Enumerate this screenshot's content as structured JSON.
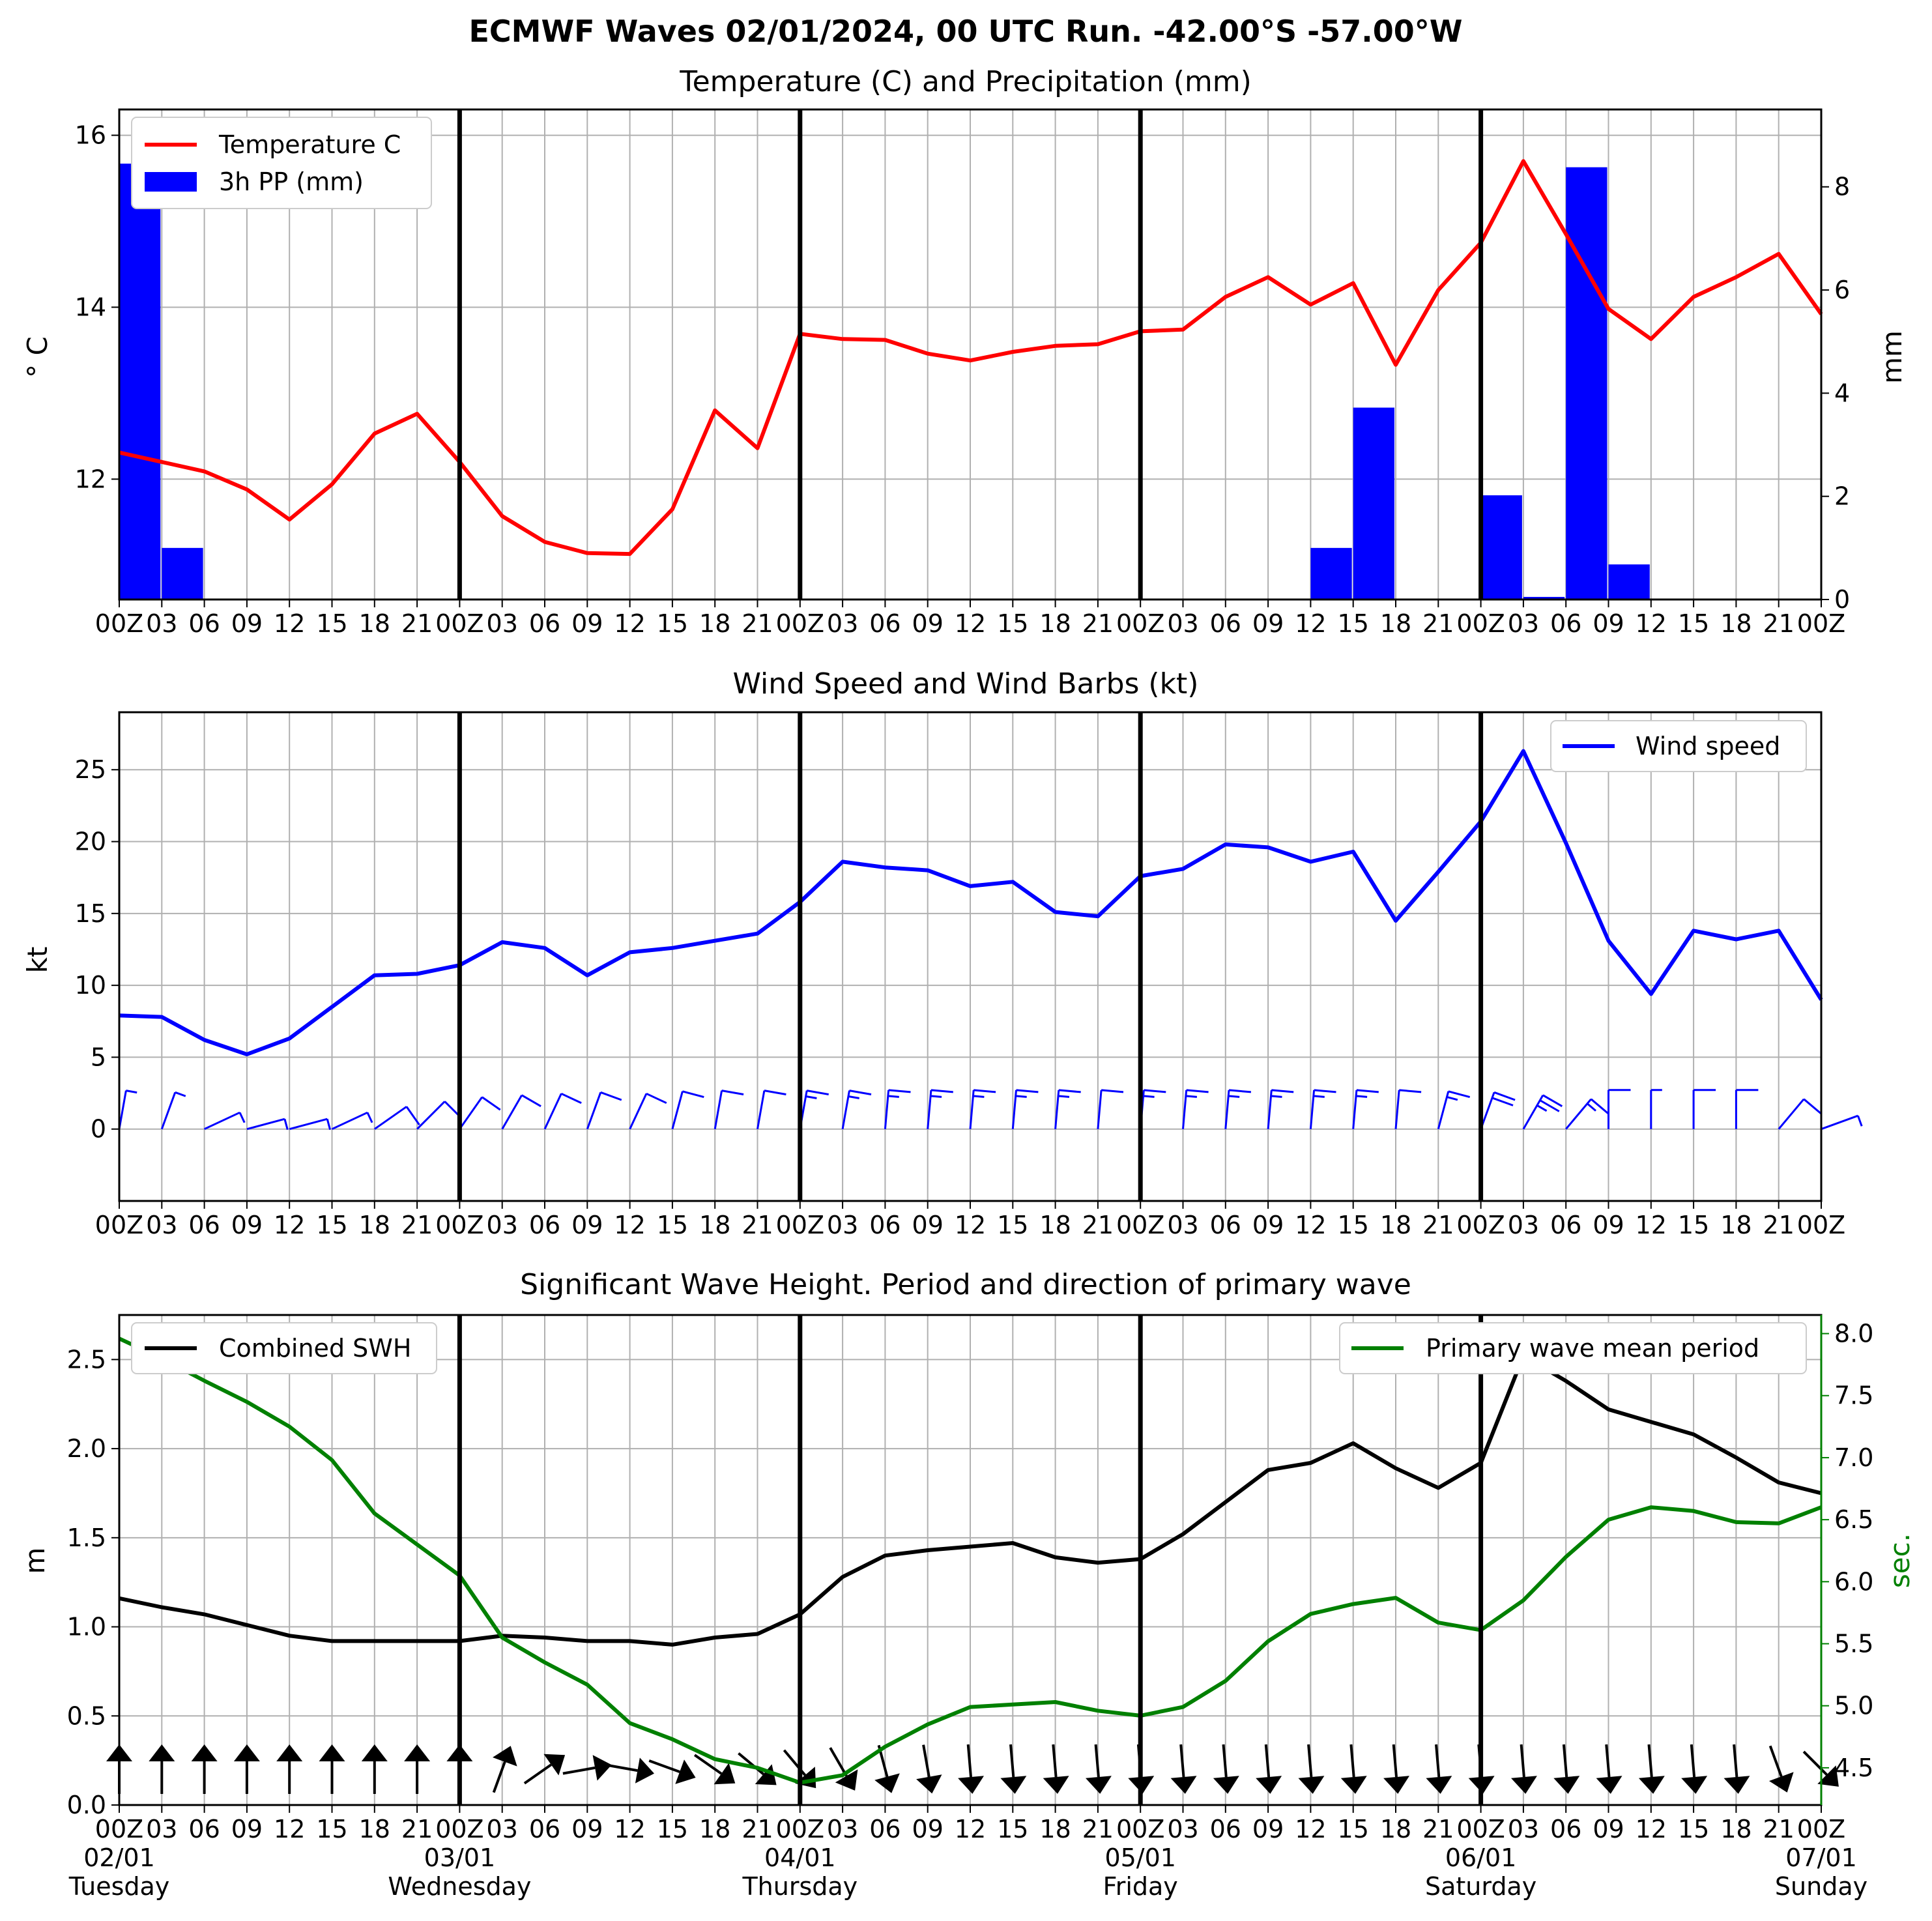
{
  "figure": {
    "suptitle": "ECMWF Waves 02/01/2024, 00 UTC Run. -42.00°S -57.00°W"
  },
  "chart_data": [
    {
      "type": "line",
      "title": "Temperature (C) and Precipitation (mm)",
      "ylabel": "° C",
      "y2label": "mm",
      "ylim": [
        10.6,
        16.3
      ],
      "yticks": [
        12,
        14,
        16
      ],
      "y2lim": [
        0,
        9.5
      ],
      "y2ticks": [
        0,
        2,
        4,
        6,
        8
      ],
      "xtick_labels": [
        "00Z",
        "03",
        "06",
        "09",
        "12",
        "15",
        "18",
        "21",
        "00Z",
        "03",
        "06",
        "09",
        "12",
        "15",
        "18",
        "21",
        "00Z",
        "03",
        "06",
        "09",
        "12",
        "15",
        "18",
        "21",
        "00Z",
        "03",
        "06",
        "09",
        "12",
        "15",
        "18",
        "21",
        "00Z",
        "03",
        "06",
        "09",
        "12",
        "15",
        "18",
        "21",
        "00Z"
      ],
      "grid": true,
      "legend": "upper left",
      "series": [
        {
          "name": "Temperature C",
          "color": "#ff0000",
          "values": [
            12.31,
            12.2,
            12.09,
            11.88,
            11.53,
            11.94,
            12.53,
            12.76,
            12.2,
            11.57,
            11.27,
            11.14,
            11.13,
            11.65,
            12.8,
            12.36,
            13.69,
            13.63,
            13.62,
            13.46,
            13.38,
            13.48,
            13.55,
            13.57,
            13.72,
            13.74,
            14.12,
            14.35,
            14.03,
            14.28,
            13.33,
            14.2,
            14.75,
            15.7,
            14.85,
            13.98,
            13.63,
            14.12,
            14.35,
            14.62,
            13.92
          ]
        },
        {
          "name": "3h PP (mm)",
          "type": "bar",
          "axis": "right",
          "color": "#0000ff",
          "values": [
            8.45,
            1.0,
            0,
            0,
            0,
            0,
            0,
            0,
            0,
            0,
            0,
            0,
            0,
            0,
            0,
            0,
            0,
            0,
            0,
            0,
            0,
            0,
            0,
            0,
            0,
            0,
            0,
            0,
            1.0,
            3.72,
            0,
            0,
            2.02,
            0.05,
            8.38,
            0.68,
            0,
            0,
            0,
            0
          ]
        }
      ]
    },
    {
      "type": "line",
      "title": "Wind Speed and Wind Barbs (kt)",
      "ylabel": "kt",
      "ylim": [
        -5,
        29
      ],
      "yticks": [
        0,
        5,
        10,
        15,
        20,
        25
      ],
      "xtick_labels": [
        "00Z",
        "03",
        "06",
        "09",
        "12",
        "15",
        "18",
        "21",
        "00Z",
        "03",
        "06",
        "09",
        "12",
        "15",
        "18",
        "21",
        "00Z",
        "03",
        "06",
        "09",
        "12",
        "15",
        "18",
        "21",
        "00Z",
        "03",
        "06",
        "09",
        "12",
        "15",
        "18",
        "21",
        "00Z",
        "03",
        "06",
        "09",
        "12",
        "15",
        "18",
        "21",
        "00Z"
      ],
      "grid": true,
      "legend": "upper right",
      "series": [
        {
          "name": "Wind speed",
          "color": "#0000ff",
          "values": [
            7.9,
            7.8,
            6.2,
            5.2,
            6.3,
            8.5,
            10.7,
            10.8,
            11.4,
            13.0,
            12.6,
            10.7,
            12.3,
            12.6,
            13.1,
            13.6,
            15.8,
            18.6,
            18.2,
            18.0,
            16.9,
            17.2,
            15.1,
            14.8,
            17.6,
            18.1,
            19.8,
            19.6,
            18.6,
            19.3,
            14.5,
            17.9,
            21.4,
            26.3,
            19.9,
            13.1,
            9.4,
            13.8,
            13.2,
            13.8,
            9.0
          ]
        }
      ],
      "barbs": {
        "color": "#0000ff",
        "directions_deg": [
          10,
          20,
          65,
          75,
          75,
          65,
          55,
          45,
          35,
          30,
          25,
          20,
          25,
          15,
          10,
          10,
          10,
          10,
          5,
          5,
          5,
          5,
          5,
          5,
          5,
          5,
          5,
          5,
          5,
          5,
          5,
          15,
          20,
          30,
          40,
          0,
          0,
          0,
          0,
          40,
          70
        ]
      }
    },
    {
      "type": "line",
      "title": "Significant Wave Height. Period and direction of primary wave",
      "ylabel": "m",
      "y2label": "sec.",
      "ylim": [
        0,
        2.75
      ],
      "yticks": [
        0.0,
        0.5,
        1.0,
        1.5,
        2.0,
        2.5
      ],
      "y2lim": [
        4.2,
        8.15
      ],
      "y2ticks": [
        4.5,
        5.0,
        5.5,
        6.0,
        6.5,
        7.0,
        7.5,
        8.0
      ],
      "xtick_labels": [
        "00Z",
        "03",
        "06",
        "09",
        "12",
        "15",
        "18",
        "21",
        "00Z",
        "03",
        "06",
        "09",
        "12",
        "15",
        "18",
        "21",
        "00Z",
        "03",
        "06",
        "09",
        "12",
        "15",
        "18",
        "21",
        "00Z",
        "03",
        "06",
        "09",
        "12",
        "15",
        "18",
        "21",
        "00Z",
        "03",
        "06",
        "09",
        "12",
        "15",
        "18",
        "21",
        "00Z"
      ],
      "date_labels": [
        {
          "date": "02/01",
          "day": "Tuesday"
        },
        {
          "date": "03/01",
          "day": "Wednesday"
        },
        {
          "date": "04/01",
          "day": "Thursday"
        },
        {
          "date": "05/01",
          "day": "Friday"
        },
        {
          "date": "06/01",
          "day": "Saturday"
        },
        {
          "date": "07/01",
          "day": "Sunday"
        }
      ],
      "grid": true,
      "legend": "upper left / upper right",
      "series": [
        {
          "name": "Combined SWH",
          "color": "#000000",
          "values": [
            1.16,
            1.11,
            1.07,
            1.01,
            0.95,
            0.92,
            0.92,
            0.92,
            0.92,
            0.95,
            0.94,
            0.92,
            0.92,
            0.9,
            0.94,
            0.96,
            1.07,
            1.28,
            1.4,
            1.43,
            1.45,
            1.47,
            1.39,
            1.36,
            1.38,
            1.52,
            1.7,
            1.88,
            1.92,
            2.03,
            1.89,
            1.78,
            1.92,
            2.52,
            2.38,
            2.22,
            2.15,
            2.08,
            1.95,
            1.81,
            1.75
          ]
        },
        {
          "name": "Primary wave mean period",
          "axis": "right",
          "color": "#008000",
          "values": [
            7.96,
            7.8,
            7.62,
            7.45,
            7.25,
            6.98,
            6.55,
            6.3,
            6.05,
            5.55,
            5.35,
            5.17,
            4.86,
            4.73,
            4.57,
            4.5,
            4.38,
            4.44,
            4.67,
            4.85,
            4.99,
            5.01,
            5.03,
            4.96,
            4.92,
            4.99,
            5.2,
            5.52,
            5.74,
            5.82,
            5.87,
            5.67,
            5.61,
            5.85,
            6.2,
            6.5,
            6.6,
            6.57,
            6.48,
            6.47,
            6.6
          ]
        }
      ],
      "arrows": {
        "color": "#000000",
        "directions_deg": [
          180,
          180,
          180,
          180,
          180,
          180,
          180,
          180,
          180,
          160,
          125,
          100,
          80,
          70,
          55,
          50,
          40,
          30,
          15,
          10,
          5,
          5,
          5,
          5,
          5,
          5,
          5,
          5,
          5,
          5,
          5,
          5,
          5,
          5,
          5,
          5,
          5,
          5,
          5,
          20,
          45
        ]
      }
    }
  ]
}
